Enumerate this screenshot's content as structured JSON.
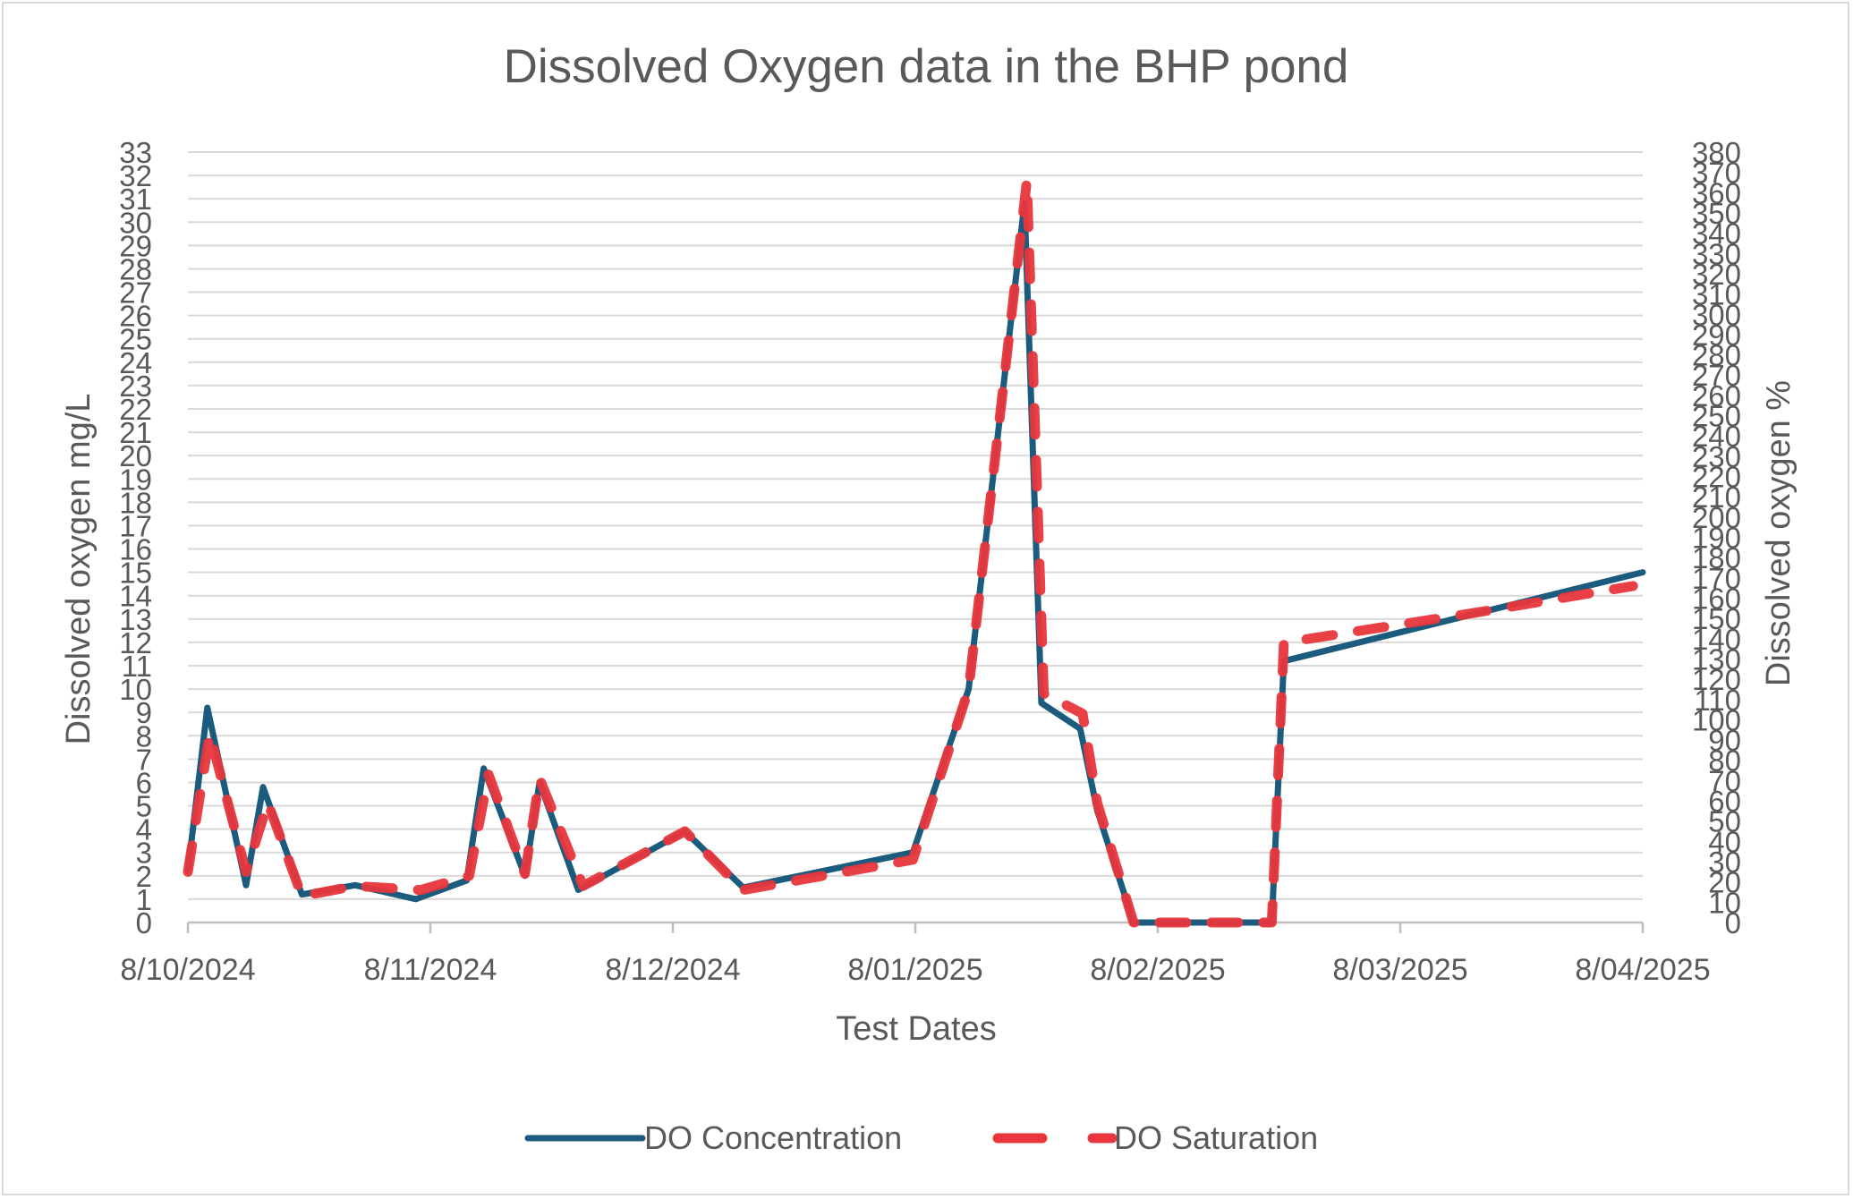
{
  "chart_data": {
    "type": "line",
    "title": "Dissolved Oxygen data in the BHP pond",
    "xlabel": "Test Dates",
    "ylabel": "Dissolved oxygen mg/L",
    "y2label": "Dissolved oxygen %",
    "x_ticks": [
      "8/10/2024",
      "8/11/2024",
      "8/12/2024",
      "8/01/2025",
      "8/02/2025",
      "8/03/2025",
      "8/04/2025"
    ],
    "x_range": [
      0,
      6
    ],
    "ylim": [
      0,
      33
    ],
    "y2lim": [
      0,
      380
    ],
    "y_ticks": [
      0,
      1,
      2,
      3,
      4,
      5,
      6,
      7,
      8,
      9,
      10,
      11,
      12,
      13,
      14,
      15,
      16,
      17,
      18,
      19,
      20,
      21,
      22,
      23,
      24,
      25,
      26,
      27,
      28,
      29,
      30,
      31,
      32,
      33
    ],
    "y2_ticks": [
      0,
      10,
      20,
      30,
      40,
      50,
      60,
      70,
      80,
      90,
      100,
      110,
      120,
      130,
      140,
      150,
      160,
      170,
      180,
      190,
      200,
      210,
      220,
      230,
      240,
      250,
      260,
      270,
      280,
      290,
      300,
      310,
      320,
      330,
      340,
      350,
      360,
      370,
      380
    ],
    "grid": true,
    "legend_position": "bottom",
    "series": [
      {
        "name": "DO Concentration",
        "axis": "left",
        "color": "#1b5c7e",
        "style": "solid",
        "points": [
          [
            0.0,
            2.2
          ],
          [
            0.08,
            9.2
          ],
          [
            0.24,
            1.6
          ],
          [
            0.31,
            5.8
          ],
          [
            0.47,
            1.2
          ],
          [
            0.69,
            1.6
          ],
          [
            0.94,
            1.0
          ],
          [
            1.15,
            1.8
          ],
          [
            1.22,
            6.6
          ],
          [
            1.39,
            2.0
          ],
          [
            1.45,
            6.0
          ],
          [
            1.61,
            1.4
          ],
          [
            2.05,
            3.9
          ],
          [
            2.29,
            1.5
          ],
          [
            2.99,
            3.0
          ],
          [
            3.22,
            10.0
          ],
          [
            3.45,
            30.8
          ],
          [
            3.52,
            9.4
          ],
          [
            3.68,
            8.3
          ],
          [
            3.75,
            4.8
          ],
          [
            3.9,
            0.0
          ],
          [
            4.47,
            0.0
          ],
          [
            4.52,
            11.2
          ],
          [
            6.0,
            15.0
          ]
        ]
      },
      {
        "name": "DO Saturation",
        "axis": "right",
        "color": "#e8363c",
        "style": "dashed",
        "points": [
          [
            0.0,
            25
          ],
          [
            0.09,
            93
          ],
          [
            0.24,
            25
          ],
          [
            0.33,
            59
          ],
          [
            0.47,
            13
          ],
          [
            0.69,
            18
          ],
          [
            0.96,
            16
          ],
          [
            1.16,
            23
          ],
          [
            1.24,
            73
          ],
          [
            1.39,
            24
          ],
          [
            1.45,
            71
          ],
          [
            1.63,
            18
          ],
          [
            2.05,
            45
          ],
          [
            2.29,
            16
          ],
          [
            2.99,
            31
          ],
          [
            3.22,
            115
          ],
          [
            3.46,
            366
          ],
          [
            3.53,
            113
          ],
          [
            3.69,
            103
          ],
          [
            3.75,
            59
          ],
          [
            3.9,
            0
          ],
          [
            4.47,
            0
          ],
          [
            4.52,
            138
          ],
          [
            5.32,
            153
          ],
          [
            5.96,
            166
          ]
        ]
      }
    ]
  }
}
